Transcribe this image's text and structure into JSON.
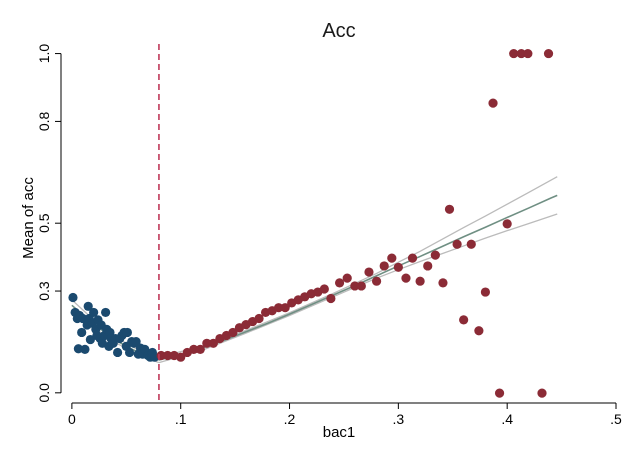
{
  "chart_data": {
    "type": "scatter",
    "title": "Acc",
    "xlabel": "bac1",
    "ylabel": "Mean of acc",
    "xlim": [
      -0.01,
      0.5
    ],
    "ylim": [
      -0.03,
      1.04
    ],
    "xticks": [
      0,
      0.1,
      0.2,
      0.3,
      0.4,
      0.5
    ],
    "xtick_labels": [
      "0",
      ".1",
      ".2",
      ".3",
      ".4",
      ".5"
    ],
    "yticks": [
      0.0,
      0.3,
      0.5,
      0.8,
      1.0
    ],
    "ytick_labels": [
      "0.0",
      "0.3",
      "0.5",
      "0.8",
      "1.0"
    ],
    "cutoff": 0.08,
    "grid": false,
    "colors": {
      "left_points": "#1b4a6f",
      "right_points": "#8b2b36",
      "fit_line": "#6f8f83",
      "ci_line": "#bbbbbb",
      "cutoff_line": "#c0395a"
    },
    "series": [
      {
        "points": [
          [
            0.001,
            0.281
          ],
          [
            0.003,
            0.237
          ],
          [
            0.005,
            0.219
          ],
          [
            0.006,
            0.13
          ],
          [
            0.007,
            0.228
          ],
          [
            0.009,
            0.178
          ],
          [
            0.01,
            0.219
          ],
          [
            0.012,
            0.128
          ],
          [
            0.014,
            0.2
          ],
          [
            0.015,
            0.255
          ],
          [
            0.016,
            0.219
          ],
          [
            0.017,
            0.157
          ],
          [
            0.019,
            0.205
          ],
          [
            0.02,
            0.237
          ],
          [
            0.022,
            0.187
          ],
          [
            0.023,
            0.169
          ],
          [
            0.024,
            0.215
          ],
          [
            0.026,
            0.16
          ],
          [
            0.027,
            0.2
          ],
          [
            0.028,
            0.146
          ],
          [
            0.03,
            0.169
          ],
          [
            0.031,
            0.237
          ],
          [
            0.032,
            0.187
          ],
          [
            0.034,
            0.137
          ],
          [
            0.035,
            0.178
          ],
          [
            0.036,
            0.16
          ],
          [
            0.038,
            0.146
          ],
          [
            0.04,
            0.16
          ],
          [
            0.042,
            0.119
          ],
          [
            0.044,
            0.16
          ],
          [
            0.046,
            0.169
          ],
          [
            0.048,
            0.178
          ],
          [
            0.05,
            0.137
          ],
          [
            0.051,
            0.178
          ],
          [
            0.053,
            0.119
          ],
          [
            0.055,
            0.151
          ],
          [
            0.057,
            0.146
          ],
          [
            0.059,
            0.151
          ],
          [
            0.061,
            0.114
          ],
          [
            0.063,
            0.132
          ],
          [
            0.065,
            0.114
          ],
          [
            0.067,
            0.128
          ],
          [
            0.07,
            0.11
          ],
          [
            0.072,
            0.105
          ],
          [
            0.074,
            0.119
          ],
          [
            0.076,
            0.105
          ]
        ],
        "fit": [
          [
            0.0,
            0.258
          ],
          [
            0.01,
            0.23
          ],
          [
            0.02,
            0.204
          ],
          [
            0.03,
            0.179
          ],
          [
            0.04,
            0.156
          ],
          [
            0.05,
            0.137
          ],
          [
            0.06,
            0.121
          ],
          [
            0.07,
            0.107
          ],
          [
            0.08,
            0.097
          ]
        ],
        "ci_low": [
          [
            0.0,
            0.242
          ],
          [
            0.02,
            0.193
          ],
          [
            0.04,
            0.148
          ],
          [
            0.06,
            0.114
          ],
          [
            0.08,
            0.089
          ]
        ],
        "ci_high": [
          [
            0.0,
            0.274
          ],
          [
            0.02,
            0.215
          ],
          [
            0.04,
            0.164
          ],
          [
            0.06,
            0.128
          ],
          [
            0.08,
            0.105
          ]
        ]
      },
      {
        "points": [
          [
            0.082,
            0.11
          ],
          [
            0.088,
            0.11
          ],
          [
            0.094,
            0.11
          ],
          [
            0.1,
            0.105
          ],
          [
            0.106,
            0.119
          ],
          [
            0.112,
            0.128
          ],
          [
            0.118,
            0.128
          ],
          [
            0.124,
            0.146
          ],
          [
            0.13,
            0.146
          ],
          [
            0.136,
            0.16
          ],
          [
            0.142,
            0.169
          ],
          [
            0.148,
            0.178
          ],
          [
            0.154,
            0.192
          ],
          [
            0.16,
            0.201
          ],
          [
            0.166,
            0.21
          ],
          [
            0.172,
            0.219
          ],
          [
            0.178,
            0.237
          ],
          [
            0.184,
            0.242
          ],
          [
            0.19,
            0.251
          ],
          [
            0.196,
            0.251
          ],
          [
            0.202,
            0.265
          ],
          [
            0.208,
            0.274
          ],
          [
            0.214,
            0.283
          ],
          [
            0.22,
            0.292
          ],
          [
            0.226,
            0.297
          ],
          [
            0.232,
            0.306
          ],
          [
            0.238,
            0.278
          ],
          [
            0.246,
            0.324
          ],
          [
            0.253,
            0.338
          ],
          [
            0.26,
            0.315
          ],
          [
            0.266,
            0.315
          ],
          [
            0.273,
            0.356
          ],
          [
            0.28,
            0.329
          ],
          [
            0.287,
            0.374
          ],
          [
            0.294,
            0.397
          ],
          [
            0.3,
            0.37
          ],
          [
            0.307,
            0.338
          ],
          [
            0.313,
            0.397
          ],
          [
            0.32,
            0.329
          ],
          [
            0.327,
            0.374
          ],
          [
            0.334,
            0.406
          ],
          [
            0.341,
            0.324
          ],
          [
            0.347,
            0.541
          ],
          [
            0.354,
            0.438
          ],
          [
            0.36,
            0.215
          ],
          [
            0.367,
            0.438
          ],
          [
            0.374,
            0.183
          ],
          [
            0.38,
            0.297
          ],
          [
            0.387,
            0.854
          ],
          [
            0.393,
            -0.001
          ],
          [
            0.4,
            0.498
          ],
          [
            0.406,
            1.0
          ],
          [
            0.413,
            1.0
          ],
          [
            0.419,
            1.0
          ],
          [
            0.432,
            -0.001
          ],
          [
            0.438,
            1.0
          ]
        ],
        "fit": [
          [
            0.08,
            0.097
          ],
          [
            0.1,
            0.112
          ],
          [
            0.12,
            0.132
          ],
          [
            0.14,
            0.155
          ],
          [
            0.16,
            0.18
          ],
          [
            0.18,
            0.205
          ],
          [
            0.2,
            0.232
          ],
          [
            0.22,
            0.26
          ],
          [
            0.24,
            0.288
          ],
          [
            0.26,
            0.316
          ],
          [
            0.28,
            0.345
          ],
          [
            0.3,
            0.374
          ],
          [
            0.32,
            0.402
          ],
          [
            0.34,
            0.431
          ],
          [
            0.36,
            0.46
          ],
          [
            0.38,
            0.488
          ],
          [
            0.4,
            0.517
          ],
          [
            0.42,
            0.545
          ],
          [
            0.44,
            0.574
          ],
          [
            0.446,
            0.582
          ]
        ],
        "ci_low": [
          [
            0.08,
            0.089
          ],
          [
            0.12,
            0.126
          ],
          [
            0.16,
            0.176
          ],
          [
            0.2,
            0.228
          ],
          [
            0.24,
            0.283
          ],
          [
            0.28,
            0.338
          ],
          [
            0.3,
            0.363
          ],
          [
            0.32,
            0.387
          ],
          [
            0.34,
            0.41
          ],
          [
            0.36,
            0.433
          ],
          [
            0.38,
            0.456
          ],
          [
            0.4,
            0.478
          ],
          [
            0.42,
            0.499
          ],
          [
            0.446,
            0.527
          ]
        ],
        "ci_high": [
          [
            0.08,
            0.105
          ],
          [
            0.12,
            0.138
          ],
          [
            0.16,
            0.184
          ],
          [
            0.2,
            0.236
          ],
          [
            0.24,
            0.293
          ],
          [
            0.28,
            0.352
          ],
          [
            0.3,
            0.385
          ],
          [
            0.32,
            0.417
          ],
          [
            0.34,
            0.452
          ],
          [
            0.36,
            0.487
          ],
          [
            0.38,
            0.521
          ],
          [
            0.4,
            0.556
          ],
          [
            0.42,
            0.591
          ],
          [
            0.446,
            0.637
          ]
        ]
      }
    ]
  }
}
